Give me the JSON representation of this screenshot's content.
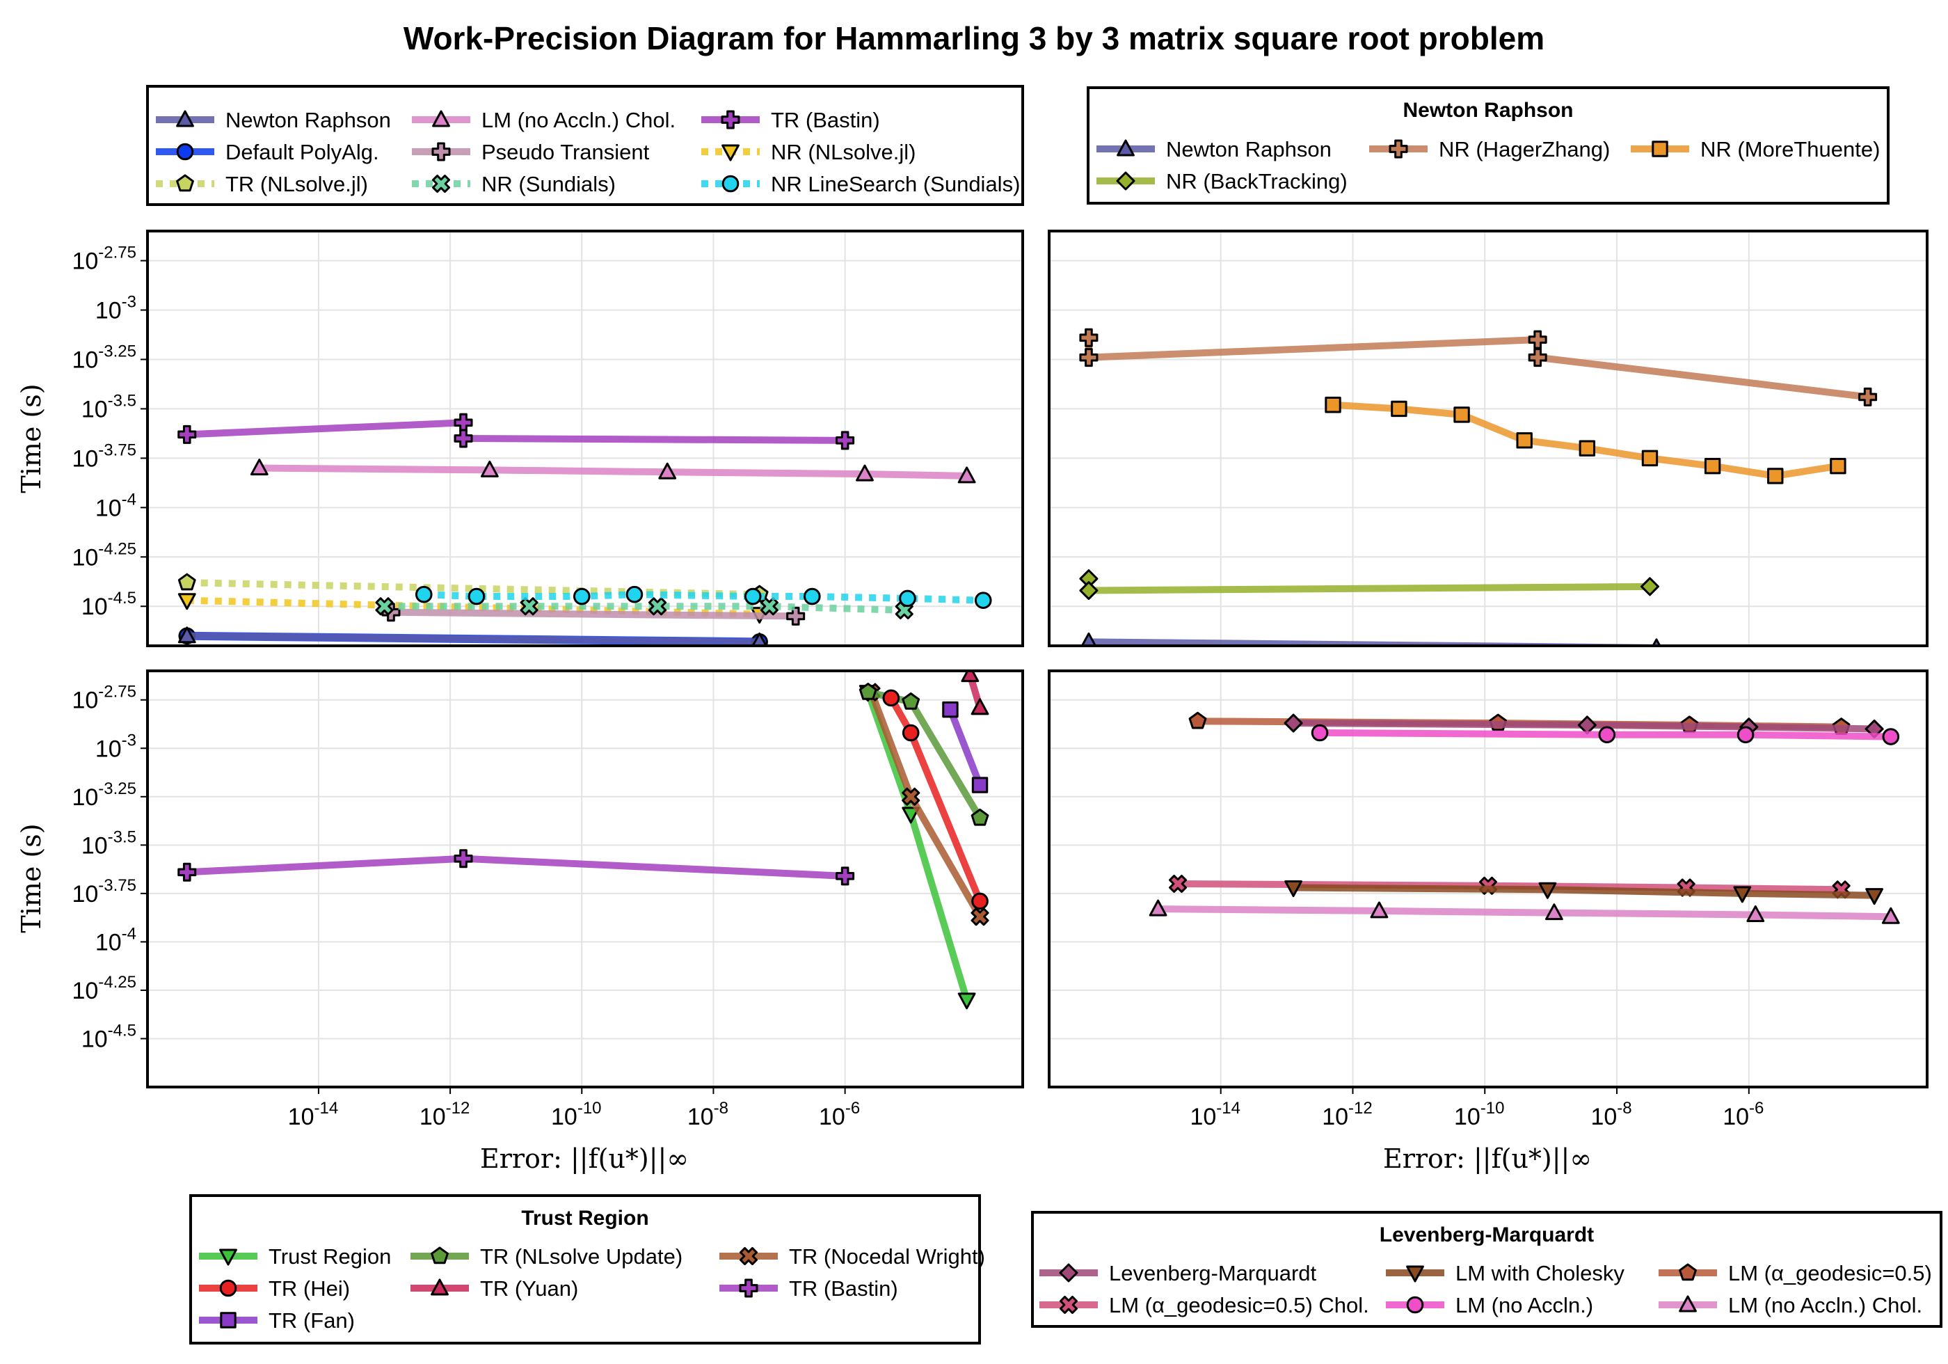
{
  "figure": {
    "title": "Work-Precision Diagram for Hammarling 3 by 3 matrix square root problem",
    "xlabel": "Error: ||f(u*)||∞",
    "ylabel": "Time (s)"
  },
  "axes": {
    "x_log10_range": [
      -16.6,
      -3.3
    ],
    "y_log10_top_range": [
      -4.7,
      -2.6
    ],
    "y_log10_bottom_range": [
      -4.75,
      -2.6
    ],
    "x_ticks": [
      -14,
      -12,
      -10,
      -8,
      -6
    ],
    "y_ticks": [
      -2.75,
      -3,
      -3.25,
      -3.5,
      -3.75,
      -4,
      -4.25,
      -4.5
    ],
    "grid": true
  },
  "legends": {
    "main": {
      "title": "",
      "columns": 3,
      "entries": [
        {
          "label": "Newton Raphson",
          "color": "#5b5ba8",
          "marker": "triangle",
          "dash": false
        },
        {
          "label": "LM (no Accln.) Chol.",
          "color": "#dc83c7",
          "marker": "triangle",
          "dash": false
        },
        {
          "label": "TR (Bastin)",
          "color": "#a43fbf",
          "marker": "cross",
          "dash": false
        },
        {
          "label": "Default PolyAlg.",
          "color": "#0d3cf0",
          "marker": "circle",
          "dash": false
        },
        {
          "label": "Pseudo Transient",
          "color": "#bf8fab",
          "marker": "cross",
          "dash": false
        },
        {
          "label": "NR (NLsolve.jl)",
          "color": "#f2c51a",
          "marker": "triangle-down",
          "dash": true
        },
        {
          "label": "TR (NLsolve.jl)",
          "color": "#c8d462",
          "marker": "pentagon",
          "dash": true
        },
        {
          "label": "NR (Sundials)",
          "color": "#6cd1a0",
          "marker": "xcross",
          "dash": true
        },
        {
          "label": "NR LineSearch (Sundials)",
          "color": "#1ed4ee",
          "marker": "circle",
          "dash": true
        }
      ]
    },
    "newton": {
      "title": "Newton Raphson",
      "columns": 3,
      "entries": [
        {
          "label": "Newton Raphson",
          "color": "#5b5ba8",
          "marker": "triangle",
          "dash": false
        },
        {
          "label": "NR (HagerZhang)",
          "color": "#c27a55",
          "marker": "cross",
          "dash": false
        },
        {
          "label": "NR (MoreThuente)",
          "color": "#ec962a",
          "marker": "square",
          "dash": false
        },
        {
          "label": "NR (BackTracking)",
          "color": "#95b02a",
          "marker": "diamond",
          "dash": false
        }
      ]
    },
    "trust": {
      "title": "Trust Region",
      "columns": 3,
      "entries": [
        {
          "label": "Trust Region",
          "color": "#3cc23a",
          "marker": "triangle-down",
          "dash": false
        },
        {
          "label": "TR (NLsolve Update)",
          "color": "#5a9a38",
          "marker": "pentagon",
          "dash": false
        },
        {
          "label": "TR (Nocedal Wright)",
          "color": "#a85a30",
          "marker": "xcross",
          "dash": false
        },
        {
          "label": "TR (Hei)",
          "color": "#e82020",
          "marker": "circle",
          "dash": false
        },
        {
          "label": "TR (Yuan)",
          "color": "#c8285a",
          "marker": "triangle",
          "dash": false
        },
        {
          "label": "TR (Bastin)",
          "color": "#a43fbf",
          "marker": "cross",
          "dash": false
        },
        {
          "label": "TR (Fan)",
          "color": "#8a3ac8",
          "marker": "square",
          "dash": false
        }
      ]
    },
    "lm": {
      "title": "Levenberg-Marquardt",
      "columns": 3,
      "entries": [
        {
          "label": "Levenberg-Marquardt",
          "color": "#a04878",
          "marker": "diamond",
          "dash": false
        },
        {
          "label": "LM with Cholesky",
          "color": "#8a4a20",
          "marker": "triangle-down",
          "dash": false
        },
        {
          "label": "LM (α_geodesic=0.5)",
          "color": "#b85a3a",
          "marker": "pentagon",
          "dash": false
        },
        {
          "label": "LM (α_geodesic=0.5) Chol.",
          "color": "#d0507a",
          "marker": "xcross",
          "dash": false
        },
        {
          "label": "LM (no Accln.)",
          "color": "#ee4fc8",
          "marker": "circle",
          "dash": false
        },
        {
          "label": "LM (no Accln.) Chol.",
          "color": "#dc83c7",
          "marker": "triangle",
          "dash": false
        }
      ]
    }
  },
  "chart_data": [
    {
      "panel": "top-left",
      "type": "line",
      "series": [
        {
          "name": "TR (Bastin)",
          "color": "#a43fbf",
          "marker": "cross",
          "dash": false,
          "width": 10,
          "x": [
            -16.0,
            -11.8,
            -11.8,
            -6.0
          ],
          "y": [
            -3.63,
            -3.57,
            -3.65,
            -3.66
          ]
        },
        {
          "name": "LM (no Accln.) Chol.",
          "color": "#dc83c7",
          "marker": "triangle",
          "dash": false,
          "width": 10,
          "x": [
            -14.9,
            -11.4,
            -8.7,
            -5.7,
            -4.15
          ],
          "y": [
            -3.8,
            -3.81,
            -3.82,
            -3.83,
            -3.84
          ]
        },
        {
          "name": "TR (NLsolve.jl)",
          "color": "#c8d462",
          "marker": "pentagon",
          "dash": true,
          "width": 10,
          "x": [
            -16.0,
            -7.3
          ],
          "y": [
            -4.38,
            -4.44
          ]
        },
        {
          "name": "NR (NLsolve.jl)",
          "color": "#f2c51a",
          "marker": "triangle-down",
          "dash": true,
          "width": 10,
          "x": [
            -16.0,
            -7.3
          ],
          "y": [
            -4.47,
            -4.54
          ]
        },
        {
          "name": "Pseudo Transient",
          "color": "#bf8fab",
          "marker": "cross",
          "dash": false,
          "width": 10,
          "x": [
            -12.9,
            -6.75
          ],
          "y": [
            -4.53,
            -4.55
          ]
        },
        {
          "name": "NR (Sundials)",
          "color": "#6cd1a0",
          "marker": "xcross",
          "dash": true,
          "width": 10,
          "x": [
            -13.0,
            -10.8,
            -8.85,
            -7.15,
            -5.1
          ],
          "y": [
            -4.5,
            -4.5,
            -4.5,
            -4.5,
            -4.52
          ]
        },
        {
          "name": "NR LineSearch (Sundials)",
          "color": "#1ed4ee",
          "marker": "circle",
          "dash": true,
          "width": 10,
          "x": [
            -12.4,
            -11.6,
            -10.0,
            -9.2,
            -7.4,
            -6.5,
            -5.05,
            -3.9
          ],
          "y": [
            -4.44,
            -4.45,
            -4.45,
            -4.44,
            -4.45,
            -4.45,
            -4.46,
            -4.47
          ]
        },
        {
          "name": "Default PolyAlg.",
          "color": "#0d3cf0",
          "marker": "circle",
          "dash": false,
          "width": 12,
          "x": [
            -16.0,
            -7.3
          ],
          "y": [
            -4.65,
            -4.68
          ]
        },
        {
          "name": "Newton Raphson",
          "color": "#5b5ba8",
          "marker": "triangle",
          "dash": false,
          "width": 10,
          "x": [
            -16.0,
            -7.3
          ],
          "y": [
            -4.65,
            -4.68
          ]
        }
      ]
    },
    {
      "panel": "top-right",
      "type": "line",
      "series": [
        {
          "name": "NR (HagerZhang)",
          "color": "#c27a55",
          "marker": "cross",
          "dash": false,
          "width": 10,
          "x": [
            -16.0,
            -16.0,
            -9.2,
            -9.2,
            -4.2
          ],
          "y": [
            -3.14,
            -3.24,
            -3.15,
            -3.24,
            -3.44
          ]
        },
        {
          "name": "NR (MoreThuente)",
          "color": "#ec962a",
          "marker": "square",
          "dash": false,
          "width": 10,
          "x": [
            -12.3,
            -11.3,
            -10.35,
            -9.4,
            -8.45,
            -7.5,
            -6.55,
            -5.6,
            -4.65
          ],
          "y": [
            -3.48,
            -3.5,
            -3.53,
            -3.66,
            -3.7,
            -3.75,
            -3.79,
            -3.84,
            -3.79
          ]
        },
        {
          "name": "NR (BackTracking)",
          "color": "#95b02a",
          "marker": "diamond",
          "dash": false,
          "width": 10,
          "x": [
            -16.0,
            -16.0,
            -7.5
          ],
          "y": [
            -4.36,
            -4.42,
            -4.4
          ]
        },
        {
          "name": "Newton Raphson",
          "color": "#5b5ba8",
          "marker": "triangle",
          "dash": false,
          "width": 10,
          "x": [
            -16.0,
            -7.4
          ],
          "y": [
            -4.68,
            -4.71
          ]
        }
      ]
    },
    {
      "panel": "bottom-left",
      "type": "line",
      "series": [
        {
          "name": "TR (Bastin)",
          "color": "#a43fbf",
          "marker": "cross",
          "dash": false,
          "width": 10,
          "x": [
            -16.0,
            -11.8,
            -6.0
          ],
          "y": [
            -3.64,
            -3.57,
            -3.66
          ]
        },
        {
          "name": "Trust Region",
          "color": "#3cc23a",
          "marker": "triangle-down",
          "dash": false,
          "width": 10,
          "x": [
            -5.65,
            -5.0,
            -4.15
          ],
          "y": [
            -2.71,
            -3.34,
            -4.3
          ]
        },
        {
          "name": "TR (Nocedal Wright)",
          "color": "#a85a30",
          "marker": "xcross",
          "dash": false,
          "width": 10,
          "x": [
            -5.6,
            -5.0,
            -3.95
          ],
          "y": [
            -2.71,
            -3.25,
            -3.87
          ]
        },
        {
          "name": "TR (NLsolve Update)",
          "color": "#5a9a38",
          "marker": "pentagon",
          "dash": false,
          "width": 10,
          "x": [
            -5.65,
            -5.0,
            -3.95
          ],
          "y": [
            -2.71,
            -2.76,
            -3.36
          ]
        },
        {
          "name": "TR (Hei)",
          "color": "#e82020",
          "marker": "circle",
          "dash": false,
          "width": 10,
          "x": [
            -5.3,
            -5.0,
            -3.95
          ],
          "y": [
            -2.74,
            -2.92,
            -3.79
          ]
        },
        {
          "name": "TR (Fan)",
          "color": "#8a3ac8",
          "marker": "square",
          "dash": false,
          "width": 10,
          "x": [
            -4.4,
            -3.95
          ],
          "y": [
            -2.8,
            -3.19
          ]
        },
        {
          "name": "TR (Yuan)",
          "color": "#c8285a",
          "marker": "triangle",
          "dash": false,
          "width": 10,
          "x": [
            -4.1,
            -3.95
          ],
          "y": [
            -2.62,
            -2.79
          ]
        }
      ]
    },
    {
      "panel": "bottom-right",
      "type": "line",
      "series": [
        {
          "name": "LM (α_geodesic=0.5)",
          "color": "#b85a3a",
          "marker": "pentagon",
          "dash": false,
          "width": 10,
          "x": [
            -14.35,
            -9.8,
            -6.9,
            -4.6
          ],
          "y": [
            -2.86,
            -2.87,
            -2.88,
            -2.89
          ]
        },
        {
          "name": "Levenberg-Marquardt",
          "color": "#a04878",
          "marker": "diamond",
          "dash": false,
          "width": 10,
          "x": [
            -12.9,
            -8.45,
            -6.0,
            -4.1
          ],
          "y": [
            -2.87,
            -2.88,
            -2.89,
            -2.9
          ]
        },
        {
          "name": "LM (no Accln.)",
          "color": "#ee4fc8",
          "marker": "circle",
          "dash": false,
          "width": 10,
          "x": [
            -12.5,
            -8.15,
            -6.05,
            -3.85
          ],
          "y": [
            -2.92,
            -2.93,
            -2.93,
            -2.94
          ]
        },
        {
          "name": "LM (α_geodesic=0.5) Chol.",
          "color": "#d0507a",
          "marker": "xcross",
          "dash": false,
          "width": 10,
          "x": [
            -14.65,
            -9.95,
            -6.95,
            -4.6
          ],
          "y": [
            -3.7,
            -3.71,
            -3.72,
            -3.73
          ]
        },
        {
          "name": "LM with Cholesky",
          "color": "#8a4a20",
          "marker": "triangle-down",
          "dash": false,
          "width": 10,
          "x": [
            -12.9,
            -9.05,
            -6.1,
            -4.1
          ],
          "y": [
            -3.72,
            -3.73,
            -3.75,
            -3.76
          ]
        },
        {
          "name": "LM (no Accln.) Chol.",
          "color": "#dc83c7",
          "marker": "triangle",
          "dash": false,
          "width": 10,
          "x": [
            -14.95,
            -11.6,
            -8.95,
            -5.9,
            -3.85
          ],
          "y": [
            -3.83,
            -3.84,
            -3.85,
            -3.86,
            -3.87
          ]
        }
      ]
    }
  ]
}
